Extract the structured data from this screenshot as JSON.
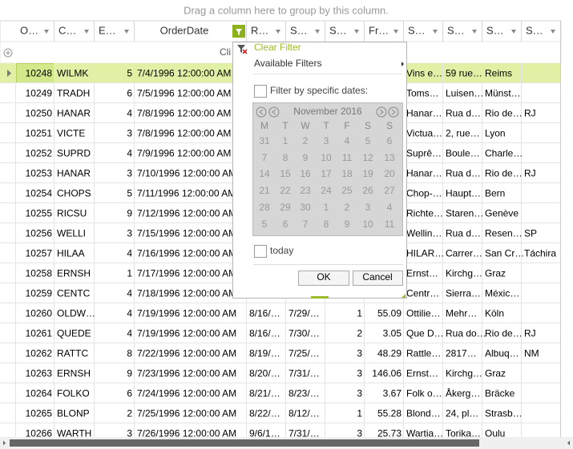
{
  "group_panel": "Drag a column here to group by this column.",
  "columns": [
    "O…",
    "C…",
    "E…",
    "OrderDate",
    "R…",
    "S…",
    "S…",
    "Fr…",
    "S…",
    "S…",
    "S…",
    "S…"
  ],
  "new_item_row": "Cli",
  "rows": [
    [
      "10248",
      "WILMK",
      "5",
      "7/4/1996 12:00:00 AM",
      null,
      null,
      null,
      null,
      "Vins e…",
      "59 rue…",
      "Reims",
      null
    ],
    [
      "10249",
      "TRADH",
      "6",
      "7/5/1996 12:00:00 AM",
      null,
      null,
      null,
      null,
      "Toms…",
      "Luisen…",
      "Münst…",
      null
    ],
    [
      "10250",
      "HANAR",
      "4",
      "7/8/1996 12:00:00 AM",
      null,
      null,
      null,
      null,
      "Hanar…",
      "Rua d…",
      "Rio de…",
      "RJ"
    ],
    [
      "10251",
      "VICTE",
      "3",
      "7/8/1996 12:00:00 AM",
      null,
      null,
      null,
      null,
      "Victua…",
      "2, rue…",
      "Lyon",
      null
    ],
    [
      "10252",
      "SUPRD",
      "4",
      "7/9/1996 12:00:00 AM",
      null,
      null,
      null,
      null,
      "Suprê…",
      "Boule…",
      "Charle…",
      null
    ],
    [
      "10253",
      "HANAR",
      "3",
      "7/10/1996 12:00:00 AM",
      null,
      null,
      null,
      null,
      "Hanar…",
      "Rua d…",
      "Rio de…",
      "RJ"
    ],
    [
      "10254",
      "CHOPS",
      "5",
      "7/11/1996 12:00:00 AM",
      null,
      null,
      null,
      null,
      "Chop-…",
      "Haupt…",
      "Bern",
      null
    ],
    [
      "10255",
      "RICSU",
      "9",
      "7/12/1996 12:00:00 AM",
      null,
      null,
      null,
      null,
      "Richte…",
      "Staren…",
      "Genève",
      null
    ],
    [
      "10256",
      "WELLI",
      "3",
      "7/15/1996 12:00:00 AM",
      null,
      null,
      null,
      null,
      "Wellin…",
      "Rua d…",
      "Resen…",
      "SP"
    ],
    [
      "10257",
      "HILAA",
      "4",
      "7/16/1996 12:00:00 AM",
      null,
      null,
      null,
      null,
      "HILAR…",
      "Carrer…",
      "San Cr…",
      "Táchira"
    ],
    [
      "10258",
      "ERNSH",
      "1",
      "7/17/1996 12:00:00 AM",
      null,
      null,
      null,
      null,
      "Ernst…",
      "Kirchg…",
      "Graz",
      null
    ],
    [
      "10259",
      "CENTC",
      "4",
      "7/18/1996 12:00:00 AM",
      null,
      null,
      null,
      null,
      "Centr…",
      "Sierra…",
      "Méxic…",
      null
    ],
    [
      "10260",
      "OLDW…",
      "4",
      "7/19/1996 12:00:00 AM",
      "8/16/…",
      "7/29/…",
      "1",
      "55.09",
      "Ottilie…",
      "Mehr…",
      "Köln",
      null
    ],
    [
      "10261",
      "QUEDE",
      "4",
      "7/19/1996 12:00:00 AM",
      "8/16/…",
      "7/30/…",
      "2",
      "3.05",
      "Que D…",
      "Rua do…",
      "Rio de…",
      "RJ"
    ],
    [
      "10262",
      "RATTC",
      "8",
      "7/22/1996 12:00:00 AM",
      "8/19/…",
      "7/25/…",
      "3",
      "48.29",
      "Rattle…",
      "2817…",
      "Albuq…",
      "NM"
    ],
    [
      "10263",
      "ERNSH",
      "9",
      "7/23/1996 12:00:00 AM",
      "8/20/…",
      "7/31/…",
      "3",
      "146.06",
      "Ernst…",
      "Kirchg…",
      "Graz",
      null
    ],
    [
      "10264",
      "FOLKO",
      "6",
      "7/24/1996 12:00:00 AM",
      "8/21/…",
      "8/23/…",
      "3",
      "3.67",
      "Folk o…",
      "Åkerg…",
      "Bräcke",
      null
    ],
    [
      "10265",
      "BLONP",
      "2",
      "7/25/1996 12:00:00 AM",
      "8/22/…",
      "8/12/…",
      "1",
      "55.28",
      "Blond…",
      "24, pl…",
      "Strasb…",
      null
    ],
    [
      "10266",
      "WARTH",
      "3",
      "7/26/1996 12:00:00 AM",
      "9/6/1…",
      "7/31/…",
      "3",
      "25.73",
      "Wartia…",
      "Torika…",
      "Oulu",
      null
    ]
  ],
  "filter_popup": {
    "clear_filter": "Clear Filter",
    "available_filters": "Available Filters",
    "specific_dates": "Filter by specific dates:",
    "calendar": {
      "title": "November 2016",
      "weekdays": [
        "M",
        "T",
        "W",
        "T",
        "F",
        "S",
        "S"
      ],
      "weeks": [
        [
          31,
          1,
          2,
          3,
          4,
          5,
          6
        ],
        [
          7,
          8,
          9,
          10,
          11,
          12,
          13
        ],
        [
          14,
          15,
          16,
          17,
          18,
          19,
          20
        ],
        [
          21,
          22,
          23,
          24,
          25,
          26,
          27
        ],
        [
          28,
          29,
          30,
          1,
          2,
          3,
          4
        ],
        [
          5,
          6,
          7,
          8,
          9,
          10,
          11
        ]
      ]
    },
    "today": "today",
    "ok": "OK",
    "cancel": "Cancel"
  }
}
